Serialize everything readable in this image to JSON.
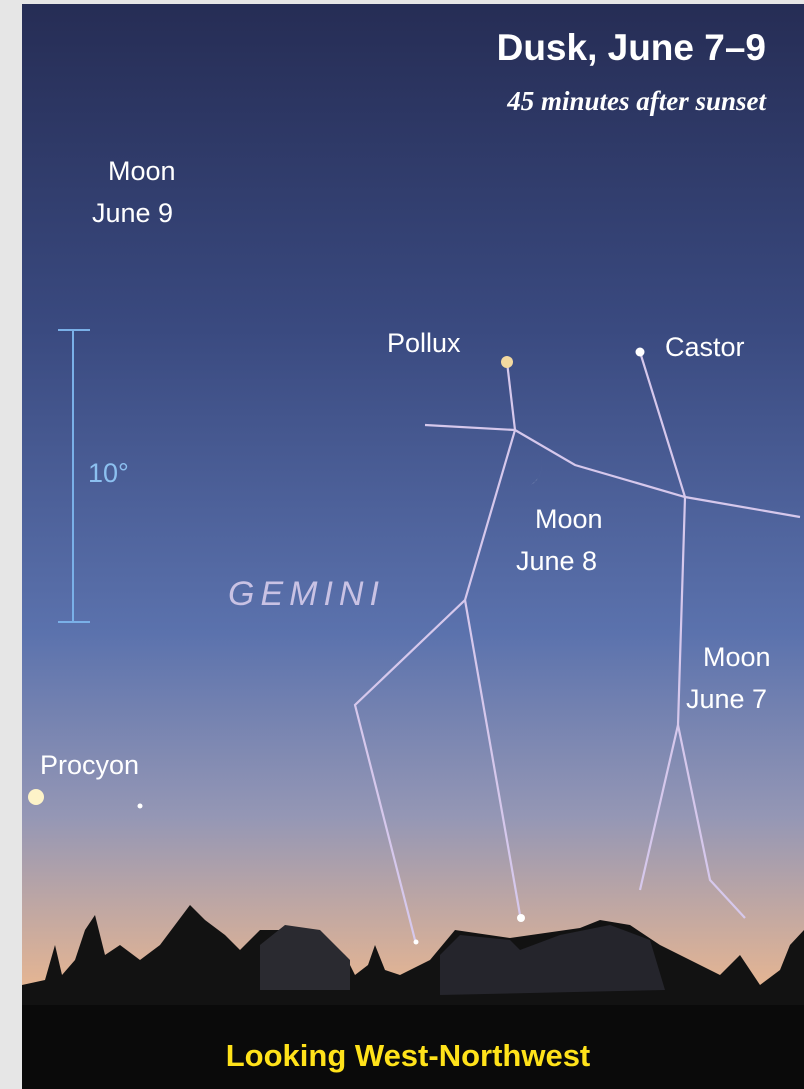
{
  "header": {
    "title": "Dusk, June 7–9",
    "subtitle": "45 minutes after sunset"
  },
  "labels": {
    "moon_june9": [
      "Moon",
      "June 9"
    ],
    "pollux": "Pollux",
    "castor": "Castor",
    "scale": "10°",
    "constellation": "GEMINI",
    "moon_june8": [
      "Moon",
      "June 8"
    ],
    "moon_june7": [
      "Moon",
      "June 7"
    ],
    "procyon": "Procyon"
  },
  "footer": "Looking West-Northwest"
}
